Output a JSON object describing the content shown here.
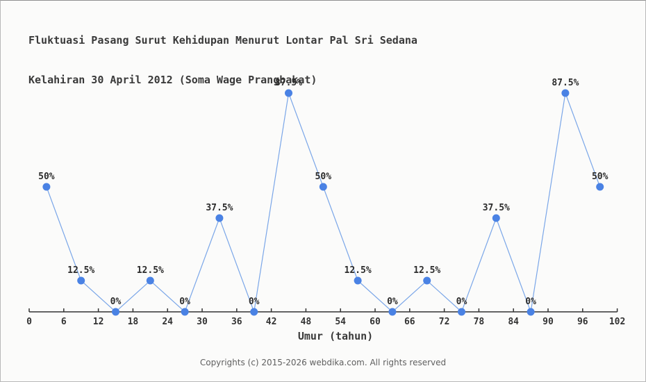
{
  "title": {
    "line1": "Fluktuasi Pasang Surut Kehidupan Menurut Lontar Pal Sri Sedana",
    "line2": "Kelahiran 30 April 2012 (Soma Wage Prangbakat)"
  },
  "xaxis": {
    "label": "Umur (tahun)"
  },
  "footer": {
    "text": "Copyrights (c) 2015-2026 webdika.com. All rights reserved"
  },
  "chart_data": {
    "type": "line",
    "title": "Fluktuasi Pasang Surut Kehidupan Menurut Lontar Pal Sri Sedana Kelahiran 30 April 2012 (Soma Wage Prangbakat)",
    "xlabel": "Umur (tahun)",
    "ylabel": "",
    "x": [
      3,
      9,
      15,
      21,
      27,
      33,
      39,
      45,
      51,
      57,
      63,
      69,
      75,
      81,
      87,
      93,
      99
    ],
    "values": [
      50,
      12.5,
      0,
      12.5,
      0,
      37.5,
      0,
      87.5,
      50,
      12.5,
      0,
      12.5,
      0,
      37.5,
      0,
      87.5,
      50
    ],
    "point_labels": [
      "50%",
      "12.5%",
      "0%",
      "12.5%",
      "0%",
      "37.5%",
      "0%",
      "87.5%",
      "50%",
      "12.5%",
      "0%",
      "12.5%",
      "0%",
      "37.5%",
      "0%",
      "87.5%",
      "50%"
    ],
    "x_ticks": [
      0,
      6,
      12,
      18,
      24,
      30,
      36,
      42,
      48,
      54,
      60,
      66,
      72,
      78,
      84,
      90,
      96,
      102
    ],
    "xlim": [
      0,
      102
    ],
    "ylim": [
      0,
      100
    ],
    "grid": false,
    "legend": "none",
    "colors": {
      "marker": "#4a82e4",
      "line": "#7aa6e8",
      "axis": "#333333",
      "background": "#fbfbfa",
      "label_text": "#2b2b2b"
    }
  }
}
